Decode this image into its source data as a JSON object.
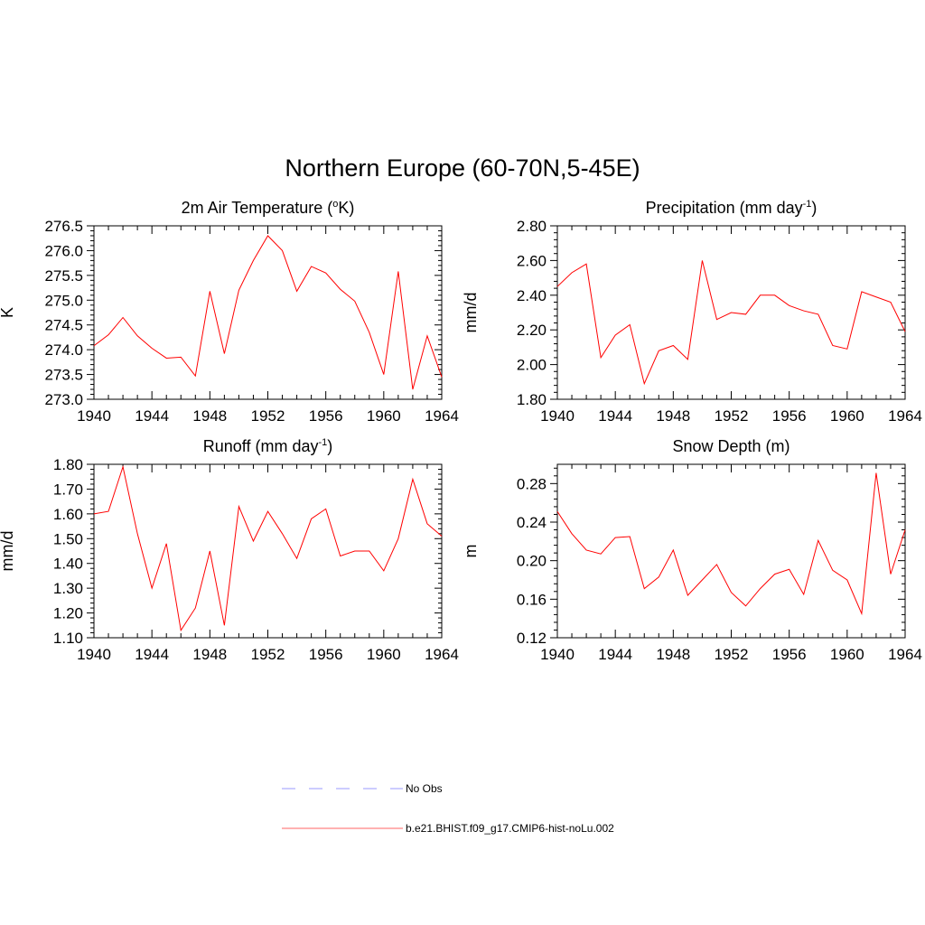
{
  "title": "Northern Europe (60-70N,5-45E)",
  "colors": {
    "model": "#ff0000",
    "obs": "#9999ff",
    "axis": "#000000"
  },
  "legend": {
    "entries": [
      {
        "label": "No Obs",
        "style": "dashed",
        "color": "#9999ff"
      },
      {
        "label": "b.e21.BHIST.f09_g17.CMIP6-hist-noLu.002",
        "style": "solid",
        "color": "#ff6666"
      }
    ]
  },
  "chart_data": [
    {
      "type": "line",
      "title": "2m Air Temperature (",
      "title_sup": "o",
      "title_tail": "K)",
      "ylabel": "K",
      "xlim": [
        1940,
        1964
      ],
      "ylim": [
        273.0,
        276.5
      ],
      "xticks": [
        "1940",
        "1944",
        "1948",
        "1952",
        "1956",
        "1960",
        "1964"
      ],
      "yticks": [
        "273.0",
        "273.5",
        "274.0",
        "274.5",
        "275.0",
        "275.5",
        "276.0",
        "276.5"
      ],
      "series": [
        {
          "x": [
            1940,
            1941,
            1942,
            1943,
            1944,
            1945,
            1946,
            1947,
            1948,
            1949,
            1950,
            1951,
            1952,
            1953,
            1954,
            1955,
            1956,
            1957,
            1958,
            1959,
            1960,
            1961,
            1962,
            1963,
            1964
          ],
          "y": [
            274.08,
            274.3,
            274.65,
            274.28,
            274.03,
            273.83,
            273.85,
            273.47,
            275.18,
            273.92,
            275.2,
            275.8,
            276.3,
            276.0,
            275.18,
            275.68,
            275.55,
            275.22,
            274.98,
            274.35,
            273.5,
            275.58,
            273.2,
            274.28,
            273.45
          ]
        }
      ]
    },
    {
      "type": "line",
      "title": "Precipitation (mm day",
      "title_sup": "-1",
      "title_tail": ")",
      "ylabel": "mm/d",
      "xlim": [
        1940,
        1964
      ],
      "ylim": [
        1.8,
        2.8
      ],
      "xticks": [
        "1940",
        "1944",
        "1948",
        "1952",
        "1956",
        "1960",
        "1964"
      ],
      "yticks": [
        "1.80",
        "2.00",
        "2.20",
        "2.40",
        "2.60",
        "2.80"
      ],
      "series": [
        {
          "x": [
            1940,
            1941,
            1942,
            1943,
            1944,
            1945,
            1946,
            1947,
            1948,
            1949,
            1950,
            1951,
            1952,
            1953,
            1954,
            1955,
            1956,
            1957,
            1958,
            1959,
            1960,
            1961,
            1962,
            1963,
            1964
          ],
          "y": [
            2.45,
            2.53,
            2.58,
            2.04,
            2.17,
            2.23,
            1.89,
            2.08,
            2.11,
            2.03,
            2.6,
            2.26,
            2.3,
            2.29,
            2.4,
            2.4,
            2.34,
            2.31,
            2.29,
            2.11,
            2.09,
            2.42,
            2.39,
            2.36,
            2.19
          ]
        }
      ]
    },
    {
      "type": "line",
      "title": "Runoff (mm day",
      "title_sup": "-1",
      "title_tail": ")",
      "ylabel": "mm/d",
      "xlim": [
        1940,
        1964
      ],
      "ylim": [
        1.1,
        1.8
      ],
      "xticks": [
        "1940",
        "1944",
        "1948",
        "1952",
        "1956",
        "1960",
        "1964"
      ],
      "yticks": [
        "1.10",
        "1.20",
        "1.30",
        "1.40",
        "1.50",
        "1.60",
        "1.70",
        "1.80"
      ],
      "series": [
        {
          "x": [
            1940,
            1941,
            1942,
            1943,
            1944,
            1945,
            1946,
            1947,
            1948,
            1949,
            1950,
            1951,
            1952,
            1953,
            1954,
            1955,
            1956,
            1957,
            1958,
            1959,
            1960,
            1961,
            1962,
            1963,
            1964
          ],
          "y": [
            1.6,
            1.61,
            1.79,
            1.52,
            1.3,
            1.48,
            1.13,
            1.22,
            1.45,
            1.15,
            1.63,
            1.49,
            1.61,
            1.52,
            1.42,
            1.58,
            1.62,
            1.43,
            1.45,
            1.45,
            1.37,
            1.5,
            1.74,
            1.56,
            1.51
          ]
        }
      ]
    },
    {
      "type": "line",
      "title": "Snow Depth (m)",
      "title_sup": "",
      "title_tail": "",
      "ylabel": "m",
      "xlim": [
        1940,
        1964
      ],
      "ylim": [
        0.12,
        0.3
      ],
      "xticks": [
        "1940",
        "1944",
        "1948",
        "1952",
        "1956",
        "1960",
        "1964"
      ],
      "yticks": [
        "0.12",
        "0.16",
        "0.20",
        "0.24",
        "0.28"
      ],
      "series": [
        {
          "x": [
            1940,
            1941,
            1942,
            1943,
            1944,
            1945,
            1946,
            1947,
            1948,
            1949,
            1950,
            1951,
            1952,
            1953,
            1954,
            1955,
            1956,
            1957,
            1958,
            1959,
            1960,
            1961,
            1962,
            1963,
            1964
          ],
          "y": [
            0.251,
            0.228,
            0.211,
            0.207,
            0.224,
            0.225,
            0.171,
            0.183,
            0.211,
            0.164,
            0.18,
            0.196,
            0.167,
            0.153,
            0.171,
            0.186,
            0.191,
            0.165,
            0.221,
            0.19,
            0.18,
            0.145,
            0.291,
            0.186,
            0.232
          ]
        }
      ]
    }
  ]
}
